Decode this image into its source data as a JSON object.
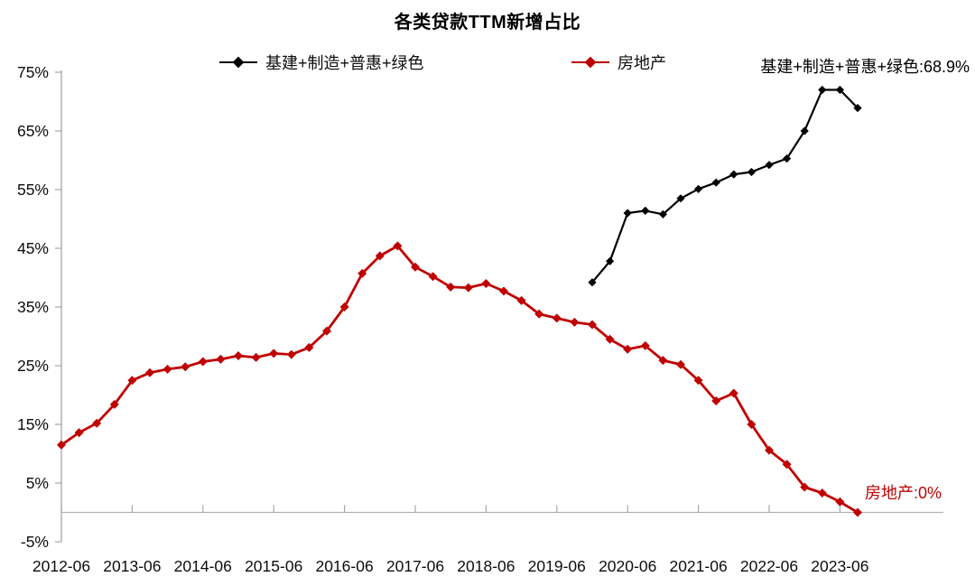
{
  "title": "各类贷款TTM新增占比",
  "colors": {
    "black_series": "#000000",
    "red_series": "#C00000",
    "axis": "#A6A6A6",
    "zero_line": "#B3B3B3",
    "tick_text": "#0d0d0d"
  },
  "legend": [
    {
      "label": "基建+制造+普惠+绿色",
      "color": "#000000"
    },
    {
      "label": "房地产",
      "color": "#C00000"
    }
  ],
  "annotations": {
    "black_end": "基建+制造+普惠+绿色:68.9%",
    "red_end": "房地产:0%"
  },
  "chart_data": {
    "type": "line",
    "title": "各类贷款TTM新增占比",
    "x_unit": "quarter",
    "grid": false,
    "legend_position": "top",
    "ylim": [
      -5,
      75
    ],
    "y_tick_labels": [
      "75%",
      "65%",
      "55%",
      "45%",
      "35%",
      "25%",
      "15%",
      "5%",
      "-5%"
    ],
    "y_tick_values": [
      75,
      65,
      55,
      45,
      35,
      25,
      15,
      5,
      -5
    ],
    "x_tick_labels": [
      "2012-06",
      "2013-06",
      "2014-06",
      "2015-06",
      "2016-06",
      "2017-06",
      "2018-06",
      "2019-06",
      "2020-06",
      "2021-06",
      "2022-06",
      "2023-06"
    ],
    "x_tick_indices": [
      0,
      4,
      8,
      12,
      16,
      20,
      24,
      28,
      32,
      36,
      40,
      44
    ],
    "categories": [
      "2012-06",
      "2012-09",
      "2012-12",
      "2013-03",
      "2013-06",
      "2013-09",
      "2013-12",
      "2014-03",
      "2014-06",
      "2014-09",
      "2014-12",
      "2015-03",
      "2015-06",
      "2015-09",
      "2015-12",
      "2016-03",
      "2016-06",
      "2016-09",
      "2016-12",
      "2017-03",
      "2017-06",
      "2017-09",
      "2017-12",
      "2018-03",
      "2018-06",
      "2018-09",
      "2018-12",
      "2019-03",
      "2019-06",
      "2019-09",
      "2019-12",
      "2020-03",
      "2020-06",
      "2020-09",
      "2020-12",
      "2021-03",
      "2021-06",
      "2021-09",
      "2021-12",
      "2022-03",
      "2022-06",
      "2022-09",
      "2022-12",
      "2023-03",
      "2023-06",
      "2023-09"
    ],
    "series": [
      {
        "name": "基建+制造+普惠+绿色",
        "color": "#000000",
        "start_index": 30,
        "end_label": "基建+制造+普惠+绿色:68.9%",
        "values": [
          39.2,
          42.8,
          51.0,
          51.4,
          50.8,
          53.5,
          55.1,
          56.2,
          57.6,
          58.0,
          59.2,
          60.3,
          65.0,
          72.0,
          72.0,
          68.9
        ]
      },
      {
        "name": "房地产",
        "color": "#C00000",
        "start_index": 0,
        "end_label": "房地产:0%",
        "values": [
          11.5,
          13.6,
          15.2,
          18.4,
          22.5,
          23.8,
          24.4,
          24.8,
          25.7,
          26.1,
          26.7,
          26.4,
          27.1,
          26.9,
          28.1,
          30.9,
          35.0,
          40.7,
          43.7,
          45.4,
          41.8,
          40.2,
          38.4,
          38.3,
          39.0,
          37.7,
          36.1,
          33.8,
          33.1,
          32.4,
          32.0,
          29.5,
          27.8,
          28.4,
          25.9,
          25.2,
          22.5,
          19.0,
          20.3,
          15.0,
          10.6,
          8.2,
          4.3,
          3.3,
          1.8,
          0.0
        ]
      }
    ]
  }
}
